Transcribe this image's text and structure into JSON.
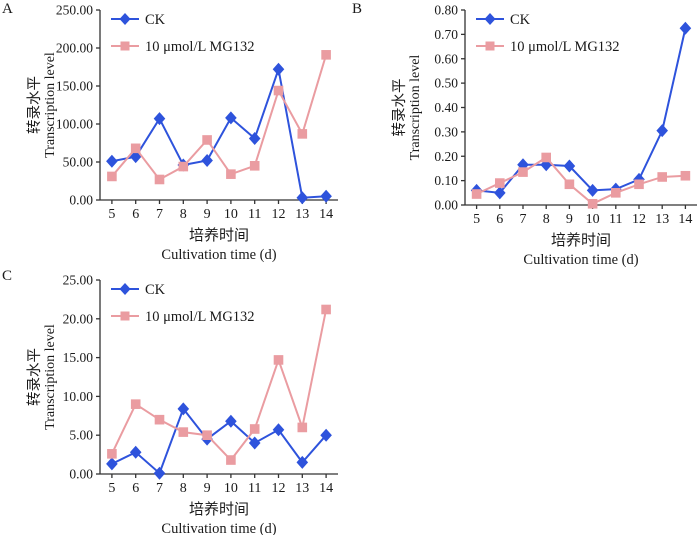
{
  "colors": {
    "ck": "#2e53dc",
    "mg132": "#ea9ca1",
    "axis": "#333333",
    "text": "#1a1a1a"
  },
  "legend_labels": [
    "CK",
    "10 μmol/L MG132"
  ],
  "chart_data": [
    {
      "panel_label": "A",
      "type": "line",
      "x": [
        5,
        6,
        7,
        8,
        9,
        10,
        11,
        12,
        13,
        14
      ],
      "xlabel_zh": "培养时间",
      "xlabel_en": "Cultivation time (d)",
      "ylabel_zh": "转录水平",
      "ylabel_en": "Transcription level",
      "ylim": [
        0,
        250
      ],
      "ytick_step": 50,
      "ytick_decimals": 2,
      "grid": false,
      "legend_position": "top-left",
      "series": [
        {
          "name": "CK",
          "marker": "diamond",
          "color_key": "ck",
          "values": [
            51,
            57,
            107,
            46,
            52,
            108,
            81,
            172,
            3,
            5
          ]
        },
        {
          "name": "10 μmol/L MG132",
          "marker": "square",
          "color_key": "mg132",
          "values": [
            31,
            68,
            27,
            44,
            79,
            34,
            45,
            144,
            87,
            191
          ]
        }
      ]
    },
    {
      "panel_label": "B",
      "type": "line",
      "x": [
        5,
        6,
        7,
        8,
        9,
        10,
        11,
        12,
        13,
        14
      ],
      "xlabel_zh": "培养时间",
      "xlabel_en": "Cultivation time (d)",
      "ylabel_zh": "转录水平",
      "ylabel_en": "Transcription level",
      "ylim": [
        0,
        0.8
      ],
      "ytick_step": 0.1,
      "ytick_decimals": 2,
      "grid": false,
      "legend_position": "top-left",
      "series": [
        {
          "name": "CK",
          "marker": "diamond",
          "color_key": "ck",
          "values": [
            0.06,
            0.05,
            0.165,
            0.165,
            0.16,
            0.06,
            0.065,
            0.105,
            0.305,
            0.725
          ]
        },
        {
          "name": "10 μmol/L MG132",
          "marker": "square",
          "color_key": "mg132",
          "values": [
            0.045,
            0.09,
            0.135,
            0.195,
            0.085,
            0.005,
            0.05,
            0.085,
            0.115,
            0.12
          ]
        }
      ]
    },
    {
      "panel_label": "C",
      "type": "line",
      "x": [
        5,
        6,
        7,
        8,
        9,
        10,
        11,
        12,
        13,
        14
      ],
      "xlabel_zh": "培养时间",
      "xlabel_en": "Cultivation time (d)",
      "ylabel_zh": "转录水平",
      "ylabel_en": "Transcription level",
      "ylim": [
        0,
        25
      ],
      "ytick_step": 5,
      "ytick_decimals": 2,
      "grid": false,
      "legend_position": "top-left",
      "series": [
        {
          "name": "CK",
          "marker": "diamond",
          "color_key": "ck",
          "values": [
            1.3,
            2.8,
            0.1,
            8.4,
            4.5,
            6.8,
            4.0,
            5.7,
            1.5,
            5.0
          ]
        },
        {
          "name": "10 μmol/L MG132",
          "marker": "square",
          "color_key": "mg132",
          "values": [
            2.6,
            9.0,
            7.0,
            5.4,
            5.0,
            1.8,
            5.8,
            14.7,
            6.0,
            21.2
          ]
        }
      ]
    }
  ]
}
